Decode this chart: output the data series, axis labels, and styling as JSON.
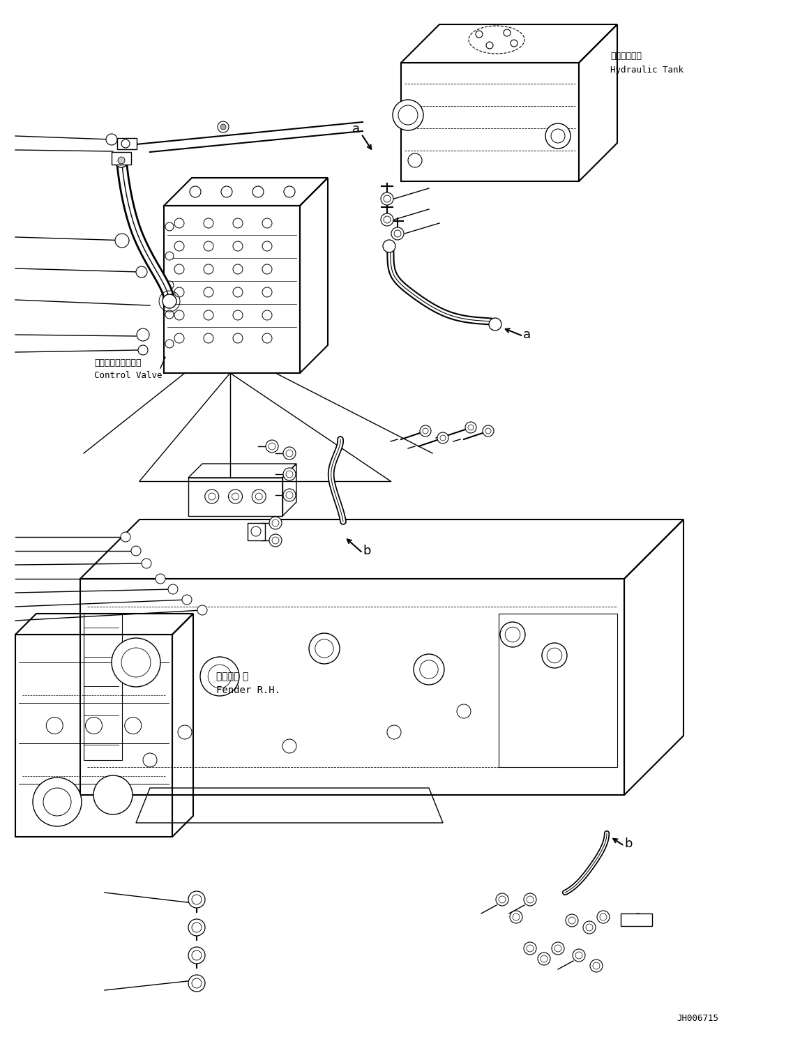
{
  "background_color": "#ffffff",
  "line_color": "#000000",
  "fig_width": 11.37,
  "fig_height": 14.9,
  "dpi": 100,
  "labels": {
    "hydraulic_tank_jp": "作動油タンク",
    "hydraulic_tank_en": "Hydraulic Tank",
    "control_valve_jp": "コントロールバルブ",
    "control_valve_en": "Control Valve",
    "fender_jp": "フェンダ 右",
    "fender_en": "Fender R.H.",
    "code": "JH006715",
    "label_a": "a",
    "label_b": "b"
  }
}
